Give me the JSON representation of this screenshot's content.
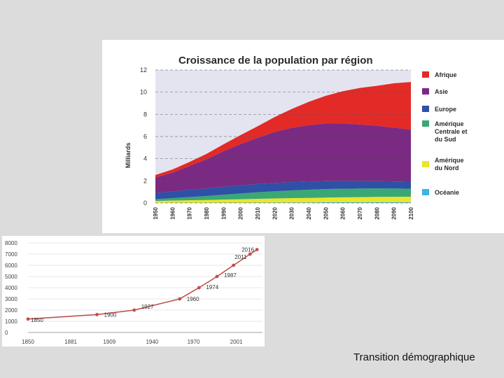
{
  "chart_data": [
    {
      "type": "area",
      "title": "Croissance de la population par région",
      "ylabel": "Milliards",
      "xlabel": "",
      "ylim": [
        0,
        12
      ],
      "yticks": [
        0,
        2,
        4,
        6,
        8,
        10,
        12
      ],
      "x": [
        1950,
        1960,
        1970,
        1980,
        1990,
        2000,
        2010,
        2020,
        2030,
        2040,
        2050,
        2060,
        2070,
        2080,
        2090,
        2100
      ],
      "grid": "dashed horizontal",
      "legend_position": "right",
      "series": [
        {
          "name": "Océanie",
          "color": "#3cb4e6",
          "values": [
            0.01,
            0.02,
            0.02,
            0.02,
            0.03,
            0.03,
            0.04,
            0.04,
            0.05,
            0.05,
            0.06,
            0.06,
            0.06,
            0.07,
            0.07,
            0.07
          ]
        },
        {
          "name": "Amérique du Nord",
          "color": "#ece52a",
          "values": [
            0.17,
            0.2,
            0.23,
            0.25,
            0.28,
            0.31,
            0.34,
            0.37,
            0.39,
            0.41,
            0.43,
            0.45,
            0.47,
            0.48,
            0.49,
            0.5
          ]
        },
        {
          "name": "Amérique Centrale et du Sud",
          "color": "#3aa874",
          "values": [
            0.17,
            0.22,
            0.29,
            0.36,
            0.44,
            0.52,
            0.59,
            0.65,
            0.7,
            0.74,
            0.77,
            0.78,
            0.78,
            0.77,
            0.75,
            0.72
          ]
        },
        {
          "name": "Europe",
          "color": "#2e50a6",
          "values": [
            0.55,
            0.6,
            0.66,
            0.69,
            0.72,
            0.73,
            0.74,
            0.75,
            0.74,
            0.73,
            0.71,
            0.69,
            0.67,
            0.65,
            0.64,
            0.63
          ]
        },
        {
          "name": "Asie",
          "color": "#7a2a82",
          "values": [
            1.4,
            1.7,
            2.14,
            2.63,
            3.2,
            3.73,
            4.17,
            4.6,
            4.9,
            5.1,
            5.2,
            5.2,
            5.1,
            5.0,
            4.85,
            4.7
          ]
        },
        {
          "name": "Afrique",
          "color": "#e32a27",
          "values": [
            0.23,
            0.28,
            0.36,
            0.48,
            0.63,
            0.81,
            1.04,
            1.34,
            1.7,
            2.1,
            2.5,
            2.9,
            3.3,
            3.6,
            4.0,
            4.3
          ]
        }
      ]
    },
    {
      "type": "line",
      "title": "",
      "xlabel": "",
      "ylabel": "",
      "xlim": [
        1850,
        2020
      ],
      "ylim": [
        0,
        8000
      ],
      "xticks": [
        1850,
        1881,
        1909,
        1940,
        1970,
        2001
      ],
      "yticks": [
        0,
        1000,
        2000,
        3000,
        4000,
        5000,
        6000,
        7000,
        8000
      ],
      "line_color": "#c0504d",
      "points": [
        {
          "x": 1850,
          "y": 1200,
          "label": "1850"
        },
        {
          "x": 1900,
          "y": 1600,
          "label": "1900"
        },
        {
          "x": 1927,
          "y": 2000,
          "label": "1927"
        },
        {
          "x": 1960,
          "y": 3000,
          "label": "1960"
        },
        {
          "x": 1974,
          "y": 4000,
          "label": "1974"
        },
        {
          "x": 1987,
          "y": 5000,
          "label": "1987"
        },
        {
          "x": 1999,
          "y": 6000,
          "label": ""
        },
        {
          "x": 2011,
          "y": 7000,
          "label": "2011"
        },
        {
          "x": 2016,
          "y": 7400,
          "label": "2016"
        }
      ]
    }
  ],
  "caption": "Transition démographique"
}
